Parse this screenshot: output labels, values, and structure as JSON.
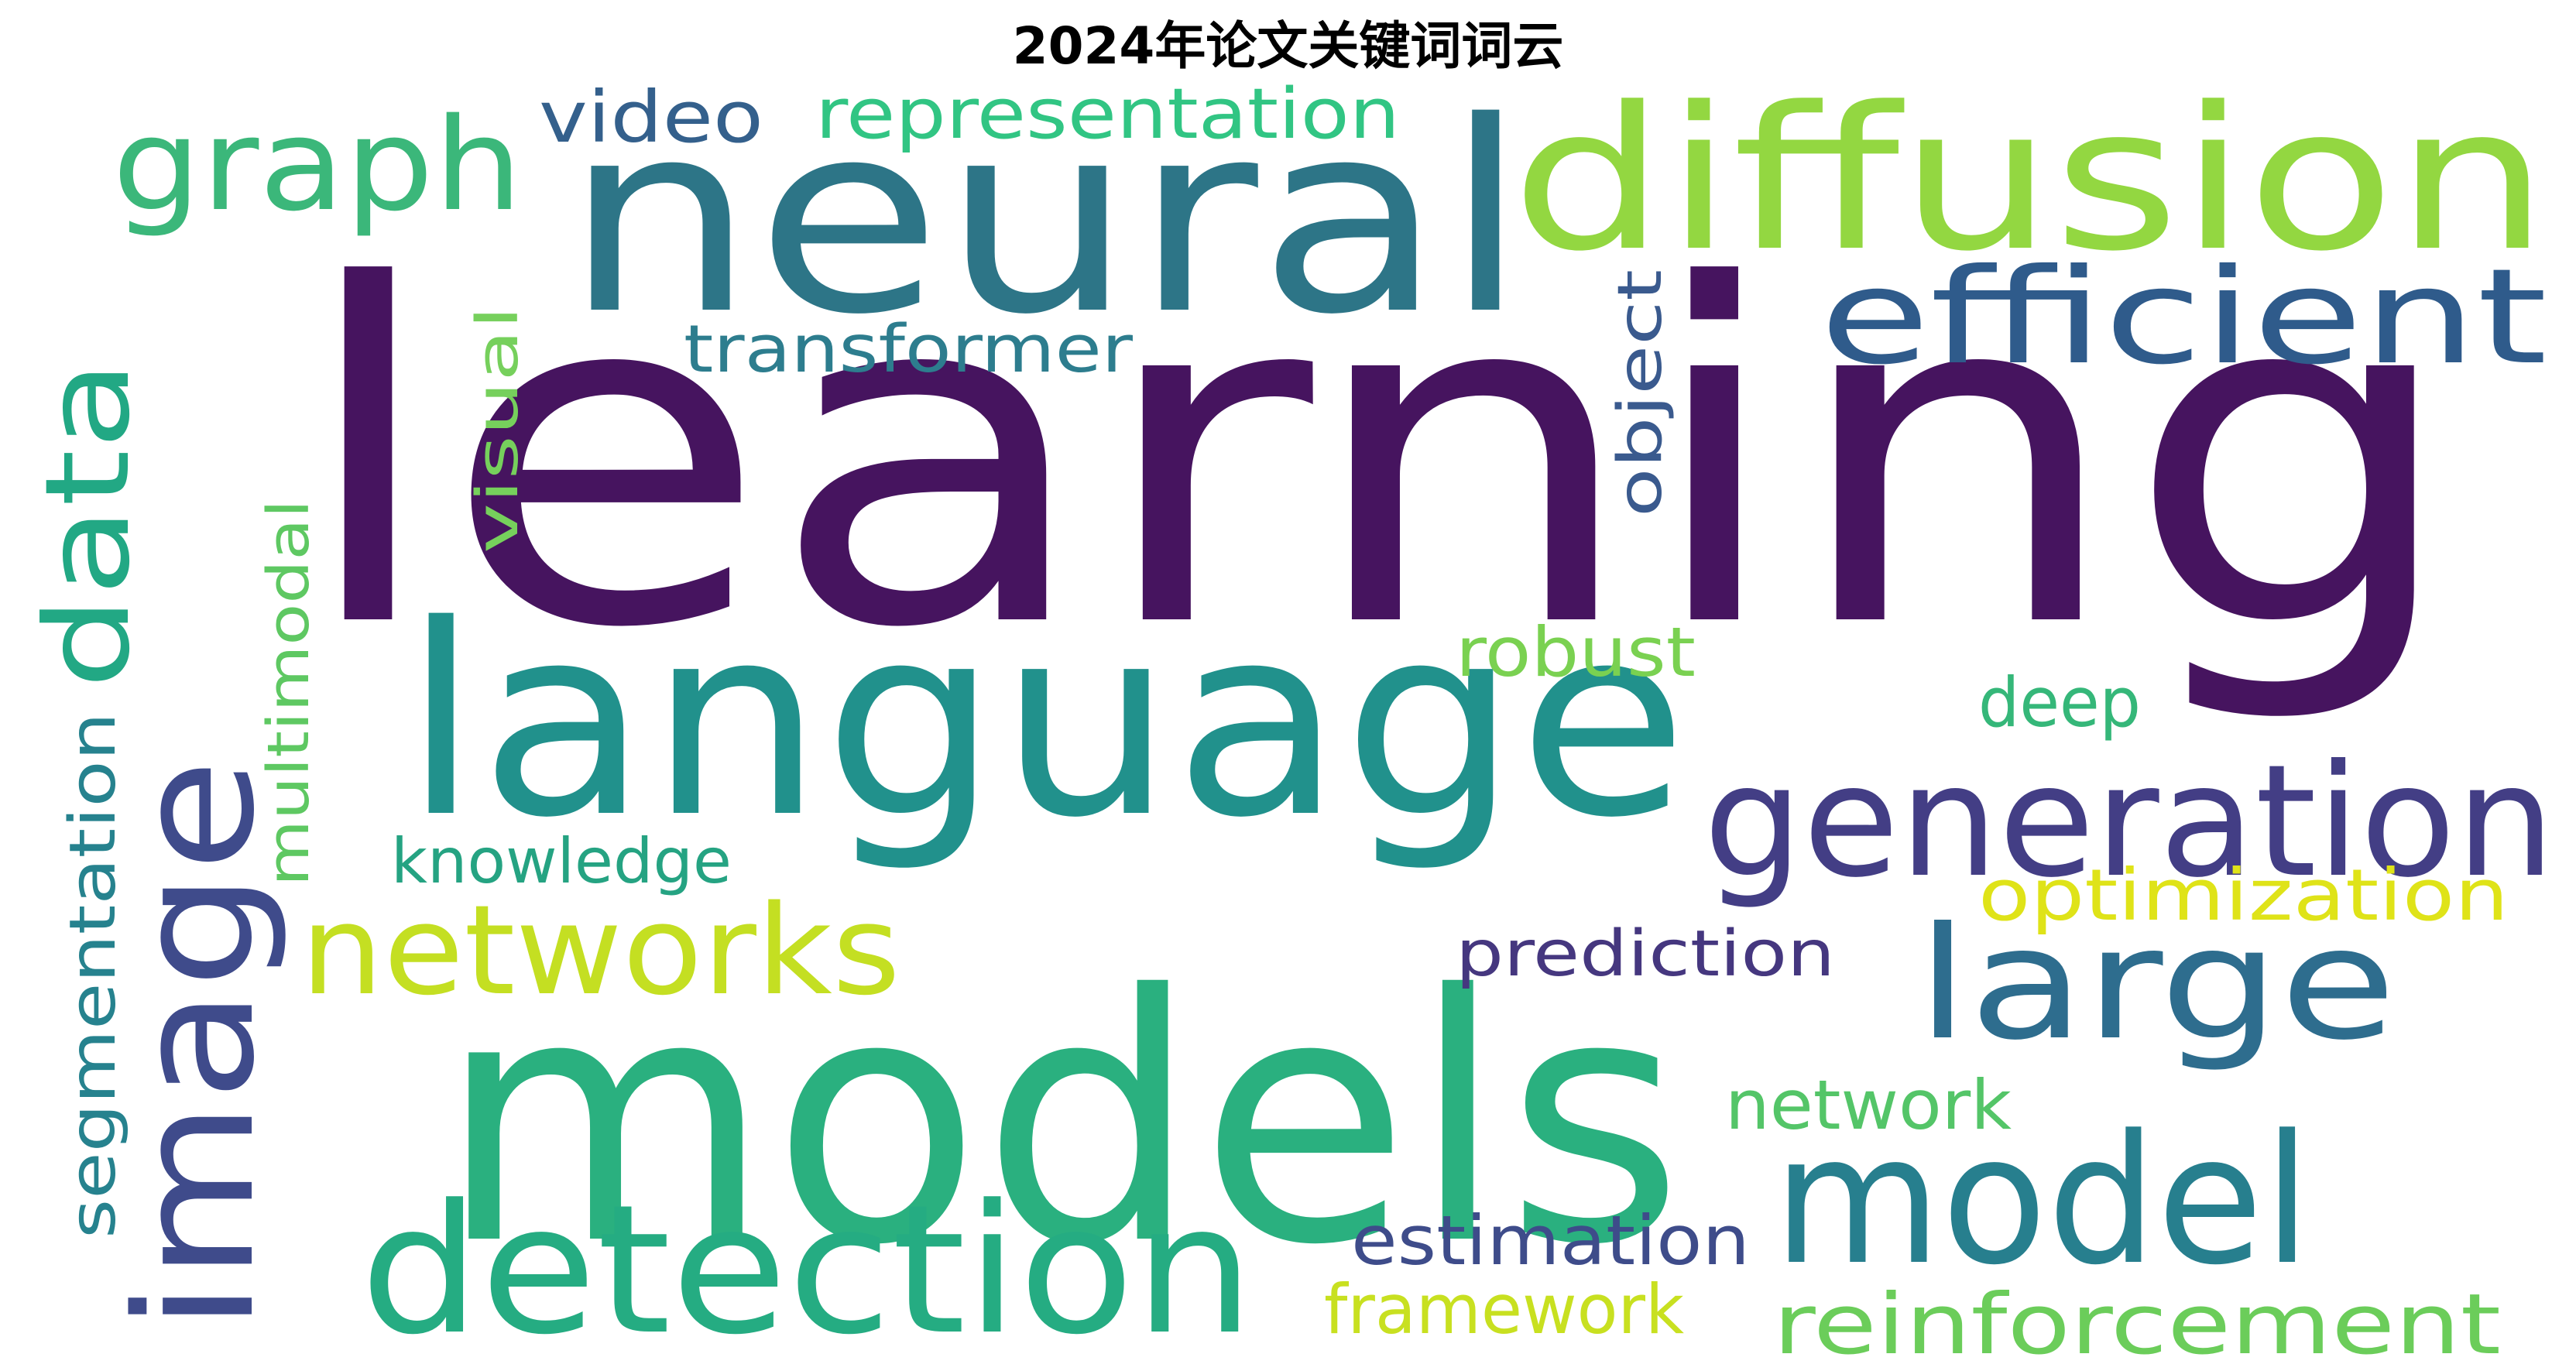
{
  "title": "2024年论文关键词词云",
  "words": [
    {
      "text": "learning",
      "color": "#46145f"
    },
    {
      "text": "neural",
      "color": "#2d7587"
    },
    {
      "text": "diffusion",
      "color": "#93d741"
    },
    {
      "text": "graph",
      "color": "#3bb77a"
    },
    {
      "text": "video",
      "color": "#34608c"
    },
    {
      "text": "representation",
      "color": "#31c583"
    },
    {
      "text": "efficient",
      "color": "#2f5b8b"
    },
    {
      "text": "transformer",
      "color": "#2d7d8e"
    },
    {
      "text": "data",
      "color": "#22a884"
    },
    {
      "text": "visual",
      "color": "#76d05c"
    },
    {
      "text": "object",
      "color": "#3a5a8e"
    },
    {
      "text": "language",
      "color": "#21918c"
    },
    {
      "text": "image",
      "color": "#3f4b8b"
    },
    {
      "text": "multimodal",
      "color": "#5ec862"
    },
    {
      "text": "segmentation",
      "color": "#26828e"
    },
    {
      "text": "robust",
      "color": "#7ad151"
    },
    {
      "text": "deep",
      "color": "#35b779"
    },
    {
      "text": "generation",
      "color": "#433e85"
    },
    {
      "text": "knowledge",
      "color": "#25a382"
    },
    {
      "text": "networks",
      "color": "#c4df22"
    },
    {
      "text": "optimization",
      "color": "#dfe318"
    },
    {
      "text": "large",
      "color": "#2e6d8e"
    },
    {
      "text": "models",
      "color": "#2ab07f"
    },
    {
      "text": "prediction",
      "color": "#45377f"
    },
    {
      "text": "network",
      "color": "#54c568"
    },
    {
      "text": "model",
      "color": "#277f8e"
    },
    {
      "text": "detection",
      "color": "#25ac82"
    },
    {
      "text": "estimation",
      "color": "#3e4c8a"
    },
    {
      "text": "framework",
      "color": "#c8e020"
    },
    {
      "text": "reinforcement",
      "color": "#6bcd5a"
    }
  ]
}
